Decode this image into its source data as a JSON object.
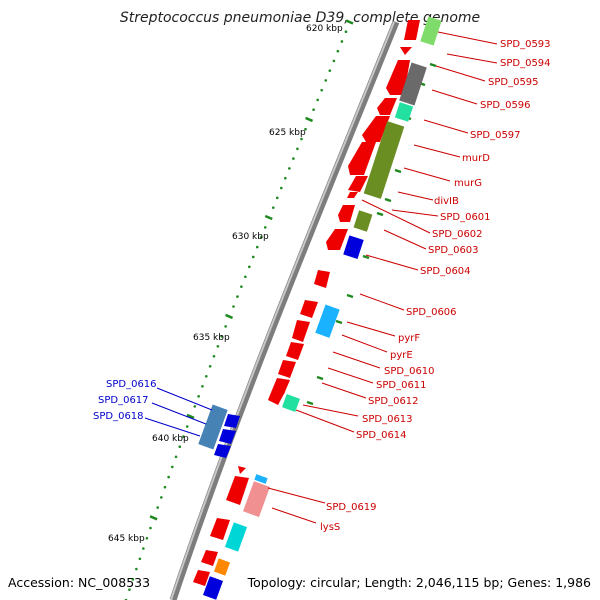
{
  "title": "Streptococcus pneumoniae D39, complete genome",
  "footer": {
    "accession": "Accession: NC_008533",
    "summary": "Topology: circular; Length: 2,046,115 bp; Genes: 1,986"
  },
  "colors": {
    "backbone": "#8a8a8a",
    "tick": "#1f8a1f",
    "label_right": "#cc0000",
    "label_left": "#0000cc"
  },
  "ticks": {
    "kbp_labels": [
      "620 kbp",
      "625 kbp",
      "630 kbp",
      "635 kbp",
      "640 kbp",
      "645 kbp"
    ]
  },
  "genes_right": [
    "SPD_0593",
    "SPD_0594",
    "SPD_0595",
    "SPD_0596",
    "SPD_0597",
    "murD",
    "murG",
    "divIB",
    "SPD_0601",
    "SPD_0602",
    "SPD_0603",
    "SPD_0604",
    "SPD_0606",
    "pyrF",
    "pyrE",
    "SPD_0610",
    "SPD_0611",
    "SPD_0612",
    "SPD_0613",
    "SPD_0614",
    "SPD_0619",
    "lysS"
  ],
  "genes_left": [
    "SPD_0616",
    "SPD_0617",
    "SPD_0618"
  ]
}
